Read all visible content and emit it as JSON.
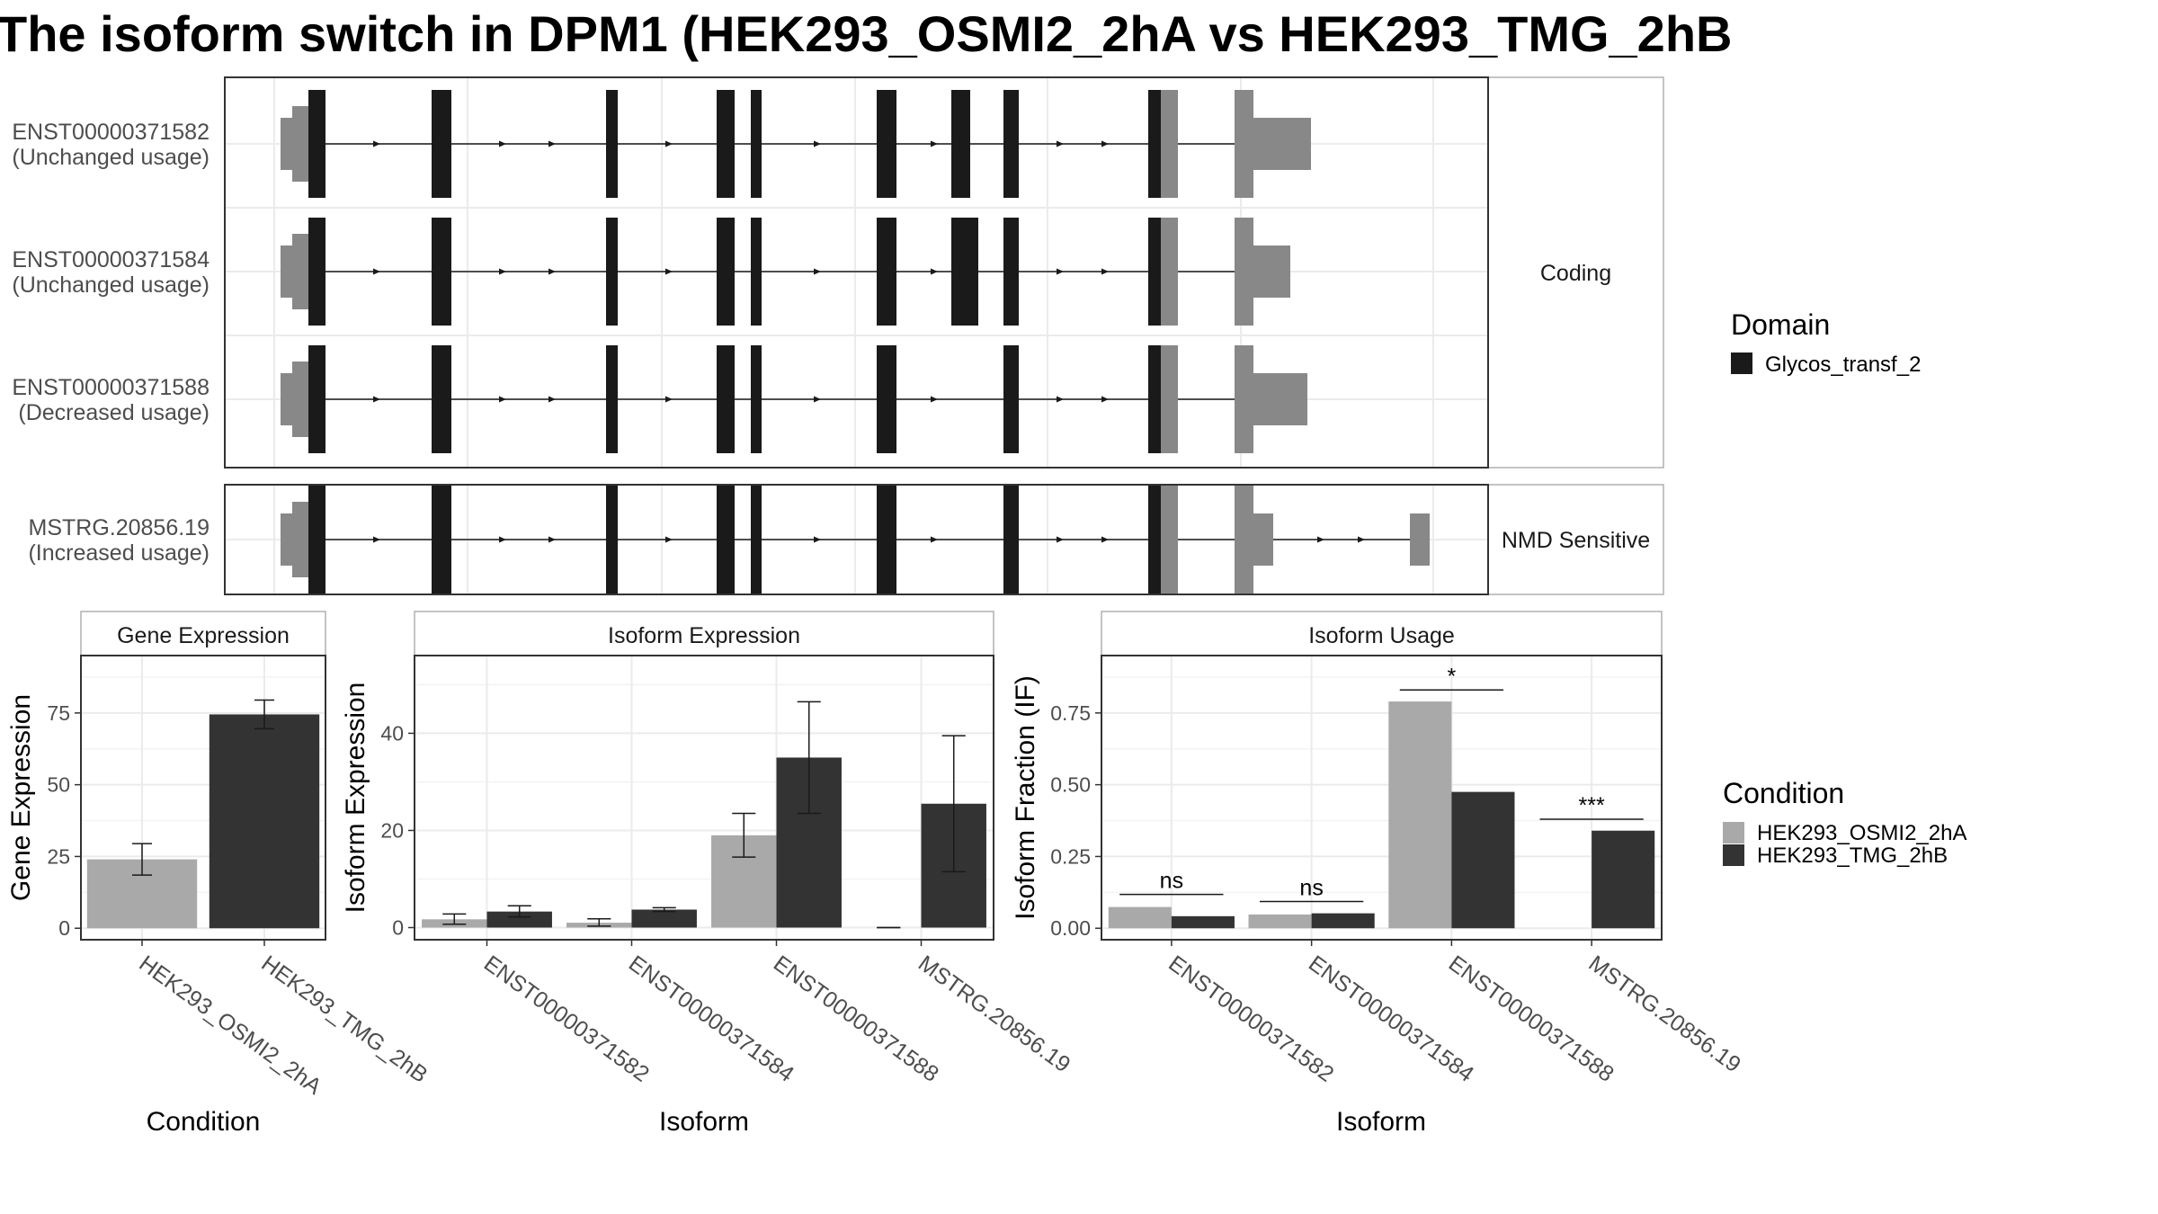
{
  "title": "The isoform switch in DPM1 (HEK293_OSMI2_2hA vs HEK293_TMG_2hB",
  "colors": {
    "domain": "#1a1a1a",
    "utr": "#888888",
    "cond_a": "#a9a9a9",
    "cond_b": "#333333",
    "grid": "#ebebeb",
    "strip_bg": "#ffffff",
    "panel_border": "#333333"
  },
  "transcripts": {
    "groups": [
      {
        "label": "Coding",
        "rows": [
          {
            "id": "ENST00000371582",
            "usage": "(Unchanged usage)"
          },
          {
            "id": "ENST00000371584",
            "usage": "(Unchanged usage)"
          },
          {
            "id": "ENST00000371588",
            "usage": "(Decreased usage)"
          }
        ]
      },
      {
        "label": "NMD Sensitive",
        "rows": [
          {
            "id": "MSTRG.20856.19",
            "usage": "(Increased usage)"
          }
        ]
      }
    ],
    "legend_title": "Domain",
    "legend_item": "Glycos_transf_2"
  },
  "chart_data": [
    {
      "type": "bar",
      "title": "Gene Expression",
      "xlabel": "Condition",
      "ylabel": "Gene Expression",
      "categories": [
        "HEK293_OSMI2_2hA",
        "HEK293_TMG_2hB"
      ],
      "values": [
        24,
        74.5
      ],
      "errors": [
        [
          18.5,
          29.5
        ],
        [
          69.5,
          79.5
        ]
      ],
      "ylim": [
        -4,
        95
      ],
      "yticks": [
        0,
        25,
        50,
        75
      ]
    },
    {
      "type": "bar",
      "title": "Isoform Expression",
      "xlabel": "Isoform",
      "ylabel": "Isoform Expression",
      "categories": [
        "ENST00000371582",
        "ENST00000371584",
        "ENST00000371588",
        "MSTRG.20856.19"
      ],
      "series": [
        {
          "name": "HEK293_OSMI2_2hA",
          "values": [
            1.7,
            1.0,
            19.0,
            0.0
          ],
          "errors": [
            [
              0.7,
              2.8
            ],
            [
              0.3,
              1.8
            ],
            [
              14.5,
              23.5
            ],
            [
              0.0,
              0.0
            ]
          ]
        },
        {
          "name": "HEK293_TMG_2hB",
          "values": [
            3.3,
            3.7,
            35.0,
            25.5
          ],
          "errors": [
            [
              2.2,
              4.5
            ],
            [
              3.3,
              4.1
            ],
            [
              23.5,
              46.5
            ],
            [
              11.5,
              39.5
            ]
          ]
        }
      ],
      "ylim": [
        -2.5,
        56
      ],
      "yticks": [
        0,
        20,
        40
      ]
    },
    {
      "type": "bar",
      "title": "Isoform Usage",
      "xlabel": "Isoform",
      "ylabel": "Isoform Fraction (IF)",
      "categories": [
        "ENST00000371582",
        "ENST00000371584",
        "ENST00000371588",
        "MSTRG.20856.19"
      ],
      "series": [
        {
          "name": "HEK293_OSMI2_2hA",
          "values": [
            0.074,
            0.048,
            0.79,
            0.0
          ]
        },
        {
          "name": "HEK293_TMG_2hB",
          "values": [
            0.042,
            0.052,
            0.475,
            0.34
          ]
        }
      ],
      "annotations": [
        "ns",
        "ns",
        "*",
        "***"
      ],
      "annotation_y": [
        0.118,
        0.093,
        0.83,
        0.38
      ],
      "ylim": [
        -0.04,
        0.95
      ],
      "yticks": [
        0.0,
        0.25,
        0.5,
        0.75
      ],
      "ytick_labels": [
        "0.00",
        "0.25",
        "0.50",
        "0.75"
      ]
    }
  ],
  "condition_legend": {
    "title": "Condition",
    "items": [
      "HEK293_OSMI2_2hA",
      "HEK293_TMG_2hB"
    ]
  }
}
